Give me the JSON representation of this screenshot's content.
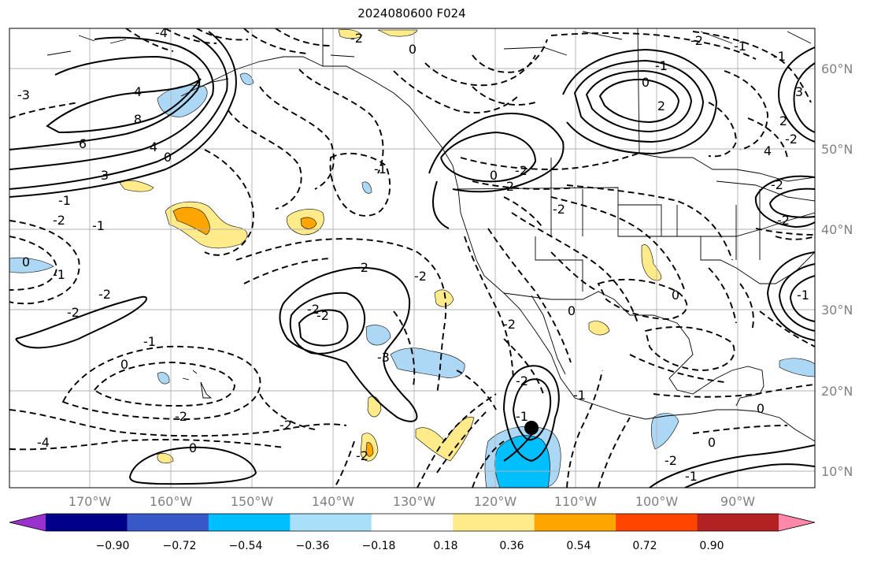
{
  "title": "2024080600 F024",
  "map": {
    "lat_ticks": [
      "60°N",
      "50°N",
      "40°N",
      "30°N",
      "20°N",
      "10°N"
    ],
    "lon_ticks": [
      "170°W",
      "160°W",
      "150°W",
      "140°W",
      "130°W",
      "120°W",
      "110°W",
      "100°W",
      "90°W"
    ],
    "marker": "storm-center",
    "contour_labels": [
      "-4",
      "-3",
      "4",
      "8",
      "6",
      "4",
      "3",
      "0",
      "-1",
      "-2",
      "-1",
      "0",
      "-1",
      "-2",
      "-2",
      "-1",
      "0",
      "-2",
      "-2",
      "0",
      "-4",
      "-2",
      "-2",
      "0",
      "-2",
      "-1",
      "-1",
      "-2",
      "-2",
      "-2",
      "-3",
      "-2",
      "-1",
      "0",
      "-2",
      "2",
      "-2",
      "-2",
      "0",
      "-1",
      "-1",
      "-2",
      "0",
      "2",
      "-1",
      "3",
      "4",
      "2",
      "-2",
      "-2",
      "-2",
      "0",
      "-1",
      "0",
      "-2",
      "0",
      "-1"
    ],
    "shading": {
      "positive_color": "#ffeb8a",
      "strong_positive_color": "#ffa500",
      "negative_color": "#add8f5",
      "strong_negative_color": "#00bfff"
    }
  },
  "colorbar": {
    "colors": [
      "#9932cc",
      "#00008b",
      "#3658c8",
      "#00bfff",
      "#aadff9",
      "#ffffff",
      "#ffeb8a",
      "#ffa500",
      "#ff4500",
      "#b22222",
      "#ff88aa"
    ],
    "labels": [
      "−0.90",
      "−0.72",
      "−0.54",
      "−0.36",
      "−0.18",
      "0.18",
      "0.36",
      "0.54",
      "0.72",
      "0.90"
    ]
  }
}
